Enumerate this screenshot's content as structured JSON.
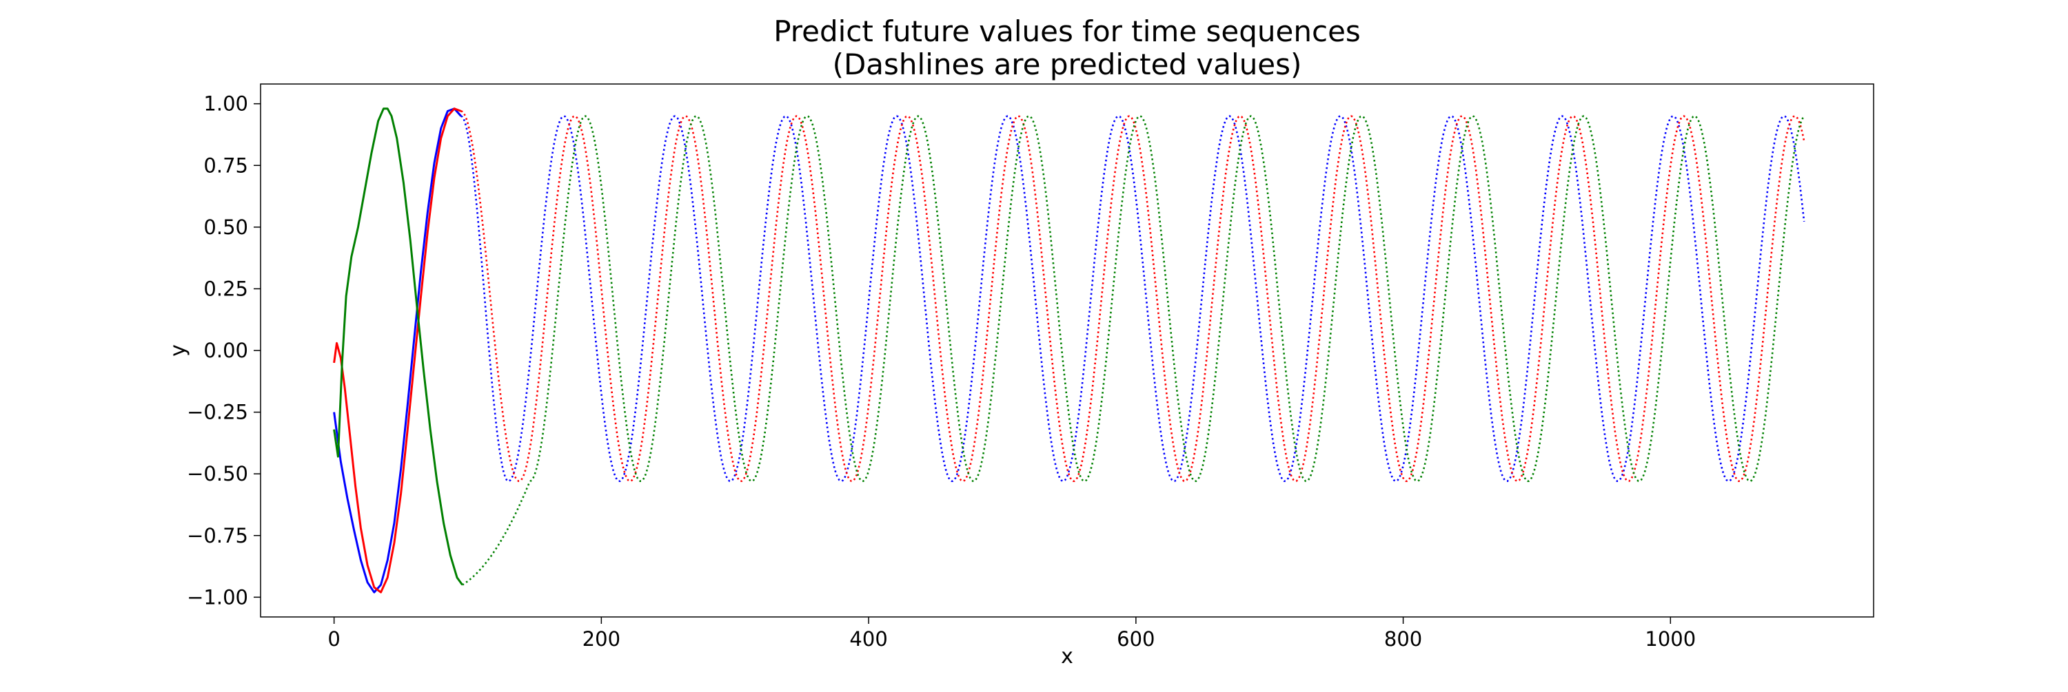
{
  "chart_data": {
    "type": "line",
    "title_line1": "Predict future values for time sequences",
    "title_line2": "(Dashlines are predicted values)",
    "xlabel": "x",
    "ylabel": "y",
    "xlim": [
      -55,
      1152
    ],
    "ylim": [
      -1.08,
      1.08
    ],
    "xticks": [
      0,
      200,
      400,
      600,
      800,
      1000
    ],
    "yticks": [
      -1.0,
      -0.75,
      -0.5,
      -0.25,
      0.0,
      0.25,
      0.5,
      0.75,
      1.0
    ],
    "ytick_labels": [
      "−1.00",
      "−0.75",
      "−0.50",
      "−0.25",
      "0.00",
      "0.25",
      "0.50",
      "0.75",
      "1.00"
    ],
    "xtick_labels": [
      "0",
      "200",
      "400",
      "600",
      "800",
      "1000"
    ],
    "grid": false,
    "legend": "none",
    "series": [
      {
        "color": "#0000ff",
        "observed": {
          "x": [
            0,
            5,
            10,
            15,
            20,
            25,
            30,
            35,
            40,
            45,
            50,
            55,
            60,
            65,
            70,
            75,
            80,
            85,
            90,
            95
          ],
          "y": [
            -0.25,
            -0.45,
            -0.6,
            -0.73,
            -0.85,
            -0.94,
            -0.98,
            -0.95,
            -0.85,
            -0.7,
            -0.48,
            -0.22,
            0.05,
            0.32,
            0.56,
            0.76,
            0.9,
            0.97,
            0.98,
            0.95
          ]
        },
        "predicted": {
          "start_x": 95,
          "end_x": 1100,
          "start_y": 0.95,
          "peak_x": 172,
          "period": 83,
          "max": 0.95,
          "min": -0.53,
          "end_y": 0.68
        }
      },
      {
        "color": "#ff0000",
        "observed": {
          "x": [
            0,
            2,
            5,
            8,
            12,
            16,
            20,
            25,
            30,
            35,
            40,
            45,
            50,
            55,
            60,
            65,
            70,
            75,
            80,
            85,
            90,
            95
          ],
          "y": [
            -0.05,
            0.03,
            -0.03,
            -0.15,
            -0.35,
            -0.55,
            -0.72,
            -0.87,
            -0.96,
            -0.98,
            -0.92,
            -0.78,
            -0.58,
            -0.32,
            -0.05,
            0.22,
            0.48,
            0.7,
            0.86,
            0.95,
            0.98,
            0.97
          ]
        },
        "predicted": {
          "start_x": 95,
          "end_x": 1100,
          "start_y": 0.97,
          "peak_x": 180,
          "period": 83,
          "max": 0.95,
          "min": -0.53,
          "end_y": 0.83
        }
      },
      {
        "color": "#008000",
        "observed": {
          "x": [
            0,
            3,
            6,
            9,
            13,
            18,
            23,
            28,
            33,
            37,
            40,
            43,
            47,
            52,
            57,
            62,
            67,
            72,
            77,
            82,
            87,
            92,
            96
          ],
          "y": [
            -0.32,
            -0.43,
            -0.05,
            0.22,
            0.38,
            0.5,
            0.65,
            0.8,
            0.93,
            0.98,
            0.98,
            0.95,
            0.86,
            0.68,
            0.45,
            0.18,
            -0.08,
            -0.32,
            -0.53,
            -0.7,
            -0.83,
            -0.92,
            -0.95
          ]
        },
        "predicted": {
          "start_x": 96,
          "end_x": 1100,
          "start_y": -0.95,
          "trough_start_x": 96,
          "peak_x": 188,
          "period": 83,
          "max": 0.95,
          "min": -0.53,
          "end_y": 0.93
        }
      }
    ]
  }
}
